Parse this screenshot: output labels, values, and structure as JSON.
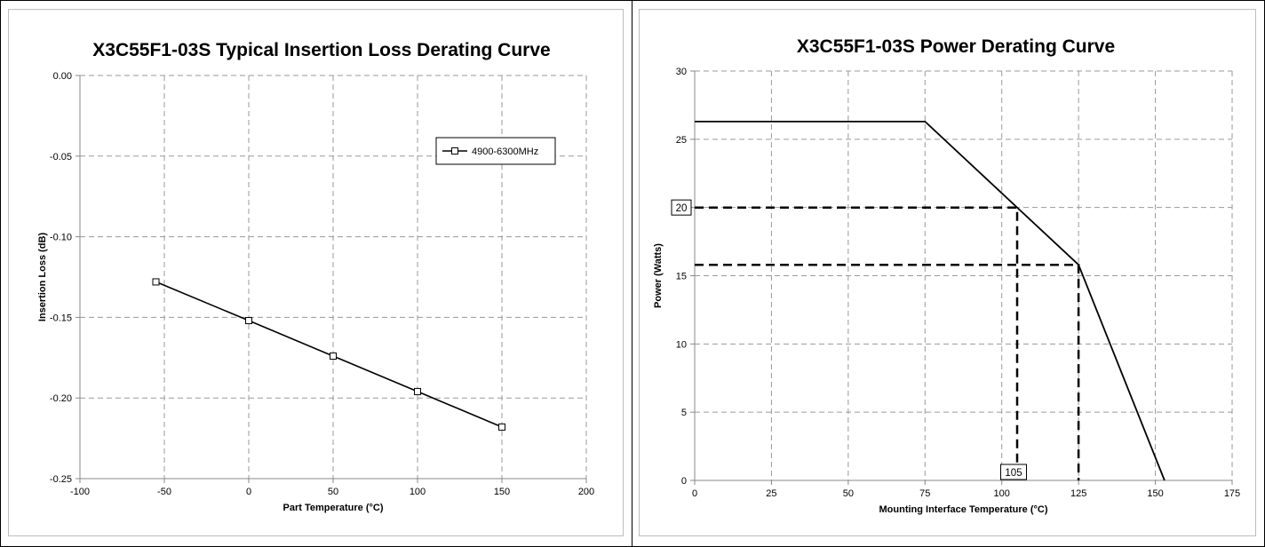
{
  "chart_data": [
    {
      "type": "line",
      "title": "X3C55F1-03S Typical Insertion Loss Derating Curve",
      "xlabel": "Part Temperature (°C)",
      "ylabel": "Insertion Loss (dB)",
      "xlim": [
        -100,
        200
      ],
      "ylim": [
        -0.25,
        0.0
      ],
      "x_ticks": [
        -100,
        -50,
        0,
        50,
        100,
        150,
        200
      ],
      "y_ticks": [
        0.0,
        -0.05,
        -0.1,
        -0.15,
        -0.2,
        -0.25
      ],
      "x_tick_labels": [
        "-100",
        "-50",
        "0",
        "50",
        "100",
        "150",
        "200"
      ],
      "y_tick_labels": [
        "0.00",
        "-0.05",
        "-0.10",
        "-0.15",
        "-0.20",
        "-0.25"
      ],
      "grid": true,
      "legend": "top-right",
      "series": [
        {
          "name": "4900-6300MHz",
          "marker": "square",
          "color": "#000000",
          "x": [
            -55,
            0,
            50,
            100,
            150
          ],
          "y": [
            -0.128,
            -0.152,
            -0.174,
            -0.196,
            -0.218
          ]
        }
      ]
    },
    {
      "type": "line",
      "title": "X3C55F1-03S Power Derating Curve",
      "xlabel": "Mounting Interface Temperature (°C)",
      "ylabel": "Power (Watts)",
      "xlim": [
        0,
        175
      ],
      "ylim": [
        0,
        30
      ],
      "x_ticks": [
        0,
        25,
        50,
        75,
        100,
        125,
        150,
        175
      ],
      "y_ticks": [
        0,
        5,
        10,
        15,
        20,
        25,
        30
      ],
      "x_tick_labels": [
        "0",
        "25",
        "50",
        "75",
        "100",
        "125",
        "150",
        "175"
      ],
      "y_tick_labels": [
        "0",
        "5",
        "10",
        "15",
        "20",
        "25",
        "30"
      ],
      "grid": true,
      "series": [
        {
          "color": "#000000",
          "x": [
            0,
            75,
            125,
            153
          ],
          "y": [
            26.3,
            26.3,
            15.8,
            0
          ]
        }
      ],
      "reference_lines": [
        {
          "points": [
            [
              0,
              20
            ],
            [
              105,
              20
            ],
            [
              105,
              0
            ]
          ]
        },
        {
          "points": [
            [
              0,
              15.8
            ],
            [
              125,
              15.8
            ],
            [
              125,
              0
            ]
          ]
        }
      ],
      "callouts": [
        {
          "label": "20",
          "x": 0,
          "y": 20,
          "anchor": "y-axis"
        },
        {
          "label": "105",
          "x": 105,
          "y": 0,
          "anchor": "x-axis"
        }
      ]
    }
  ]
}
